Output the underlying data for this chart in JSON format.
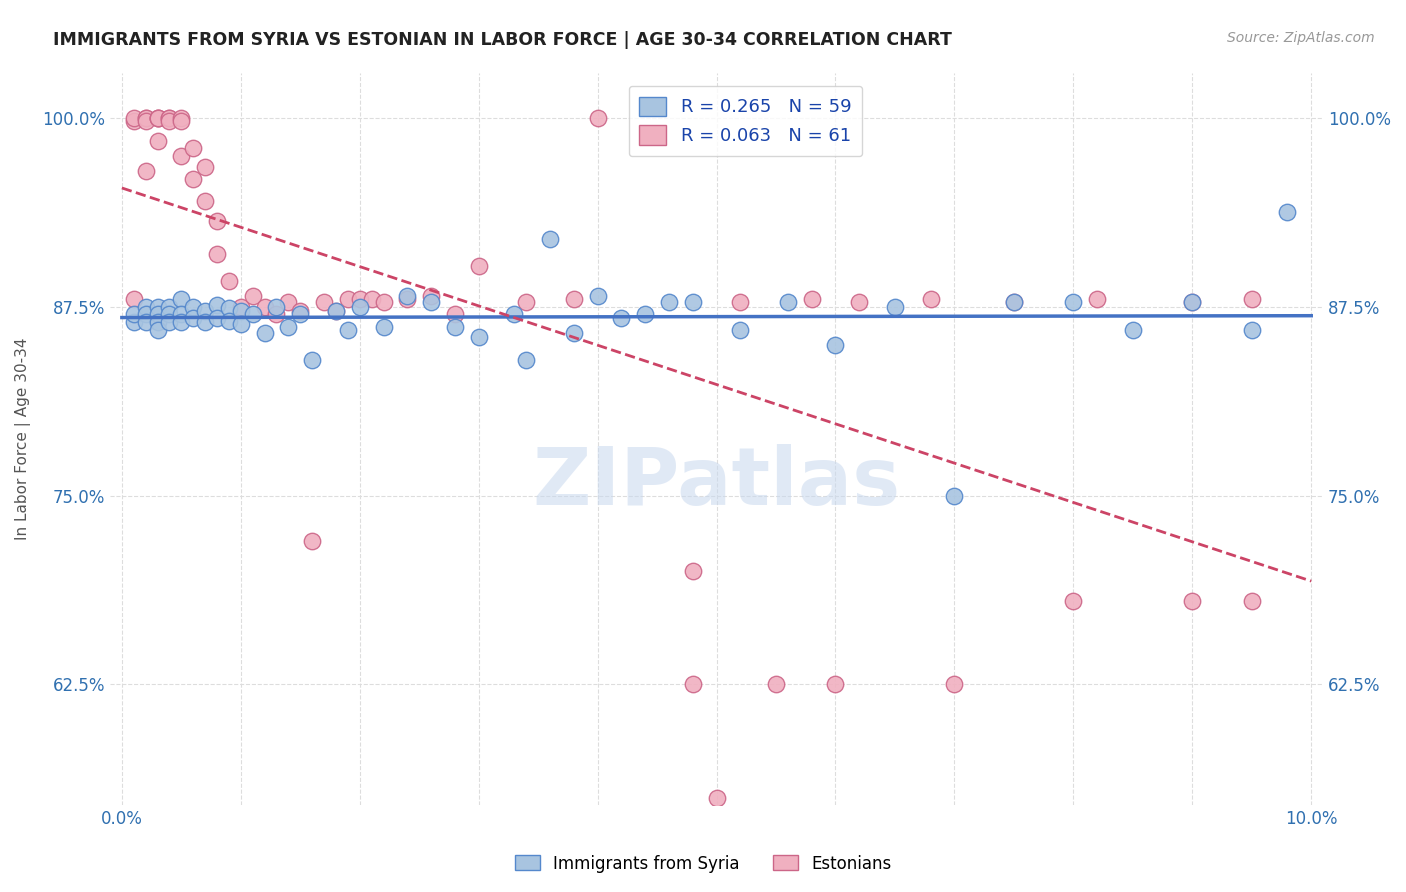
{
  "title": "IMMIGRANTS FROM SYRIA VS ESTONIAN IN LABOR FORCE | AGE 30-34 CORRELATION CHART",
  "source": "Source: ZipAtlas.com",
  "ylabel": "In Labor Force | Age 30-34",
  "xlim": [
    -0.001,
    0.101
  ],
  "ylim": [
    0.545,
    1.03
  ],
  "yticks": [
    0.625,
    0.75,
    0.875,
    1.0
  ],
  "ytick_labels": [
    "62.5%",
    "75.0%",
    "87.5%",
    "100.0%"
  ],
  "xticks": [
    0.0,
    0.01,
    0.02,
    0.03,
    0.04,
    0.05,
    0.06,
    0.07,
    0.08,
    0.09,
    0.1
  ],
  "xtick_labels": [
    "0.0%",
    "",
    "",
    "",
    "",
    "",
    "",
    "",
    "",
    "",
    "10.0%"
  ],
  "watermark": "ZIPatlas",
  "legend_R_blue": "0.265",
  "legend_N_blue": "59",
  "legend_R_pink": "0.063",
  "legend_N_pink": "61",
  "blue_fill": "#a8c4e0",
  "blue_edge": "#5588cc",
  "pink_fill": "#f0b0c0",
  "pink_edge": "#cc6688",
  "trend_blue_color": "#4472c4",
  "trend_pink_color": "#cc4466",
  "blue_x": [
    0.001,
    0.001,
    0.002,
    0.002,
    0.002,
    0.003,
    0.003,
    0.003,
    0.003,
    0.004,
    0.004,
    0.004,
    0.005,
    0.005,
    0.005,
    0.006,
    0.006,
    0.007,
    0.007,
    0.008,
    0.008,
    0.009,
    0.009,
    0.01,
    0.01,
    0.011,
    0.012,
    0.013,
    0.014,
    0.015,
    0.016,
    0.018,
    0.019,
    0.02,
    0.022,
    0.024,
    0.026,
    0.028,
    0.03,
    0.033,
    0.036,
    0.04,
    0.044,
    0.048,
    0.052,
    0.056,
    0.06,
    0.065,
    0.07,
    0.075,
    0.08,
    0.085,
    0.09,
    0.095,
    0.098,
    0.034,
    0.038,
    0.042,
    0.046
  ],
  "blue_y": [
    0.865,
    0.87,
    0.875,
    0.87,
    0.865,
    0.875,
    0.87,
    0.865,
    0.86,
    0.875,
    0.87,
    0.865,
    0.88,
    0.87,
    0.865,
    0.875,
    0.868,
    0.872,
    0.865,
    0.876,
    0.868,
    0.874,
    0.866,
    0.872,
    0.864,
    0.87,
    0.858,
    0.875,
    0.862,
    0.87,
    0.84,
    0.872,
    0.86,
    0.875,
    0.862,
    0.882,
    0.878,
    0.862,
    0.855,
    0.87,
    0.92,
    0.882,
    0.87,
    0.878,
    0.86,
    0.878,
    0.85,
    0.875,
    0.75,
    0.878,
    0.878,
    0.86,
    0.878,
    0.86,
    0.938,
    0.84,
    0.858,
    0.868,
    0.878
  ],
  "pink_x": [
    0.001,
    0.001,
    0.001,
    0.002,
    0.002,
    0.002,
    0.002,
    0.003,
    0.003,
    0.003,
    0.003,
    0.004,
    0.004,
    0.004,
    0.005,
    0.005,
    0.005,
    0.006,
    0.006,
    0.007,
    0.007,
    0.008,
    0.008,
    0.009,
    0.01,
    0.011,
    0.012,
    0.013,
    0.014,
    0.015,
    0.016,
    0.017,
    0.018,
    0.019,
    0.02,
    0.021,
    0.022,
    0.024,
    0.026,
    0.028,
    0.03,
    0.034,
    0.038,
    0.04,
    0.048,
    0.052,
    0.058,
    0.062,
    0.068,
    0.075,
    0.082,
    0.09,
    0.095,
    0.048,
    0.055,
    0.06,
    0.07,
    0.08,
    0.09,
    0.095,
    0.05
  ],
  "pink_y": [
    0.88,
    0.998,
    1.0,
    1.0,
    1.0,
    0.998,
    0.965,
    1.0,
    1.0,
    1.0,
    0.985,
    1.0,
    1.0,
    0.998,
    1.0,
    0.998,
    0.975,
    0.98,
    0.96,
    0.968,
    0.945,
    0.932,
    0.91,
    0.892,
    0.875,
    0.882,
    0.875,
    0.87,
    0.878,
    0.872,
    0.72,
    0.878,
    0.872,
    0.88,
    0.88,
    0.88,
    0.878,
    0.88,
    0.882,
    0.87,
    0.902,
    0.878,
    0.88,
    1.0,
    0.7,
    0.878,
    0.88,
    0.878,
    0.88,
    0.878,
    0.88,
    0.878,
    0.88,
    0.625,
    0.625,
    0.625,
    0.625,
    0.68,
    0.68,
    0.68,
    0.55
  ]
}
